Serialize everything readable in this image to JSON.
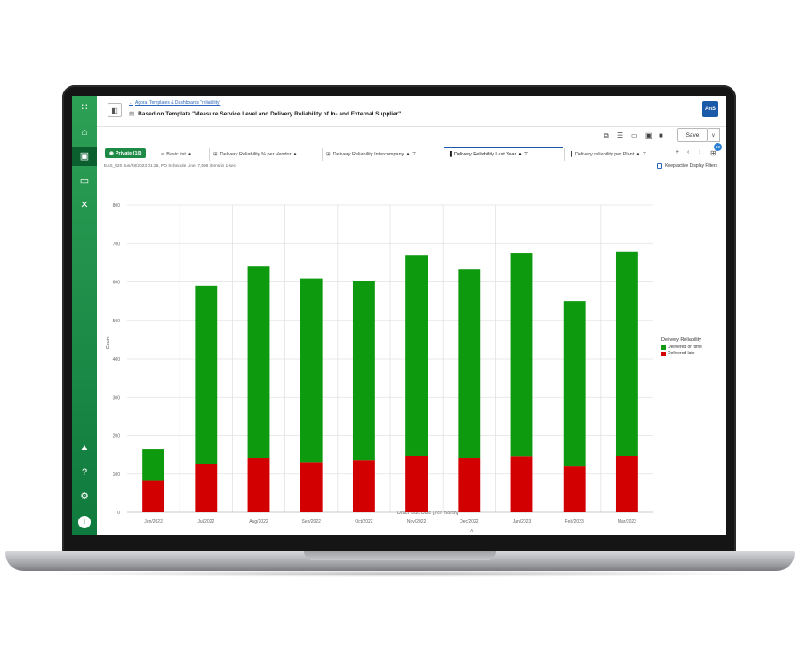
{
  "header": {
    "breadcrumb": "Agora, Templates & Dashboards \"reliability\"",
    "title": "Based on Template \"Measure Service Level and Delivery Reliability of In- and External Supplier\"",
    "logo": "AnS"
  },
  "toolbar": {
    "save_label": "Save"
  },
  "tabs": {
    "private_label": "Private (10)",
    "items": [
      "Basic list",
      "Delivery Reliability % per Vendor",
      "Delivery Reliability Intercompany",
      "Delivery Reliability Last Year",
      "Delivery reliability per Plant"
    ],
    "counter": "10"
  },
  "info_line": "EAS_820 Jun/28/2023 01:26, PO Schedule Line, 7,596 items in 1 sec",
  "keep_filters_label": "Keep active Display Filters",
  "colors": {
    "on_time": "#0e9a0e",
    "late": "#d20000",
    "sidebar": "#1f8a45",
    "accent": "#1b5aa8"
  },
  "sidebar": {
    "user_initial": "I"
  },
  "chart_data": {
    "type": "bar",
    "stacked": true,
    "categories": [
      "Jun/2022",
      "Jul/2022",
      "Aug/2022",
      "Sep/2022",
      "Oct/2022",
      "Nov/2022",
      "Dec/2022",
      "Jan/2023",
      "Feb/2023",
      "Mar/2023"
    ],
    "series": [
      {
        "name": "Delivered late",
        "color": "#d20000",
        "values": [
          82,
          125,
          141,
          131,
          136,
          148,
          141,
          145,
          120,
          146
        ]
      },
      {
        "name": "Delivered on time",
        "color": "#0e9a0e",
        "values": [
          82,
          465,
          499,
          478,
          467,
          522,
          492,
          530,
          430,
          532
        ]
      }
    ],
    "xlabel": "Order Due Date  [Per month]",
    "ylabel": "Count",
    "ylim": [
      0,
      800
    ],
    "yticks": [
      0,
      100,
      200,
      300,
      400,
      500,
      600,
      700,
      800
    ],
    "legend_title": "Delivery Reliability",
    "legend_placement": "right",
    "grid": true
  }
}
